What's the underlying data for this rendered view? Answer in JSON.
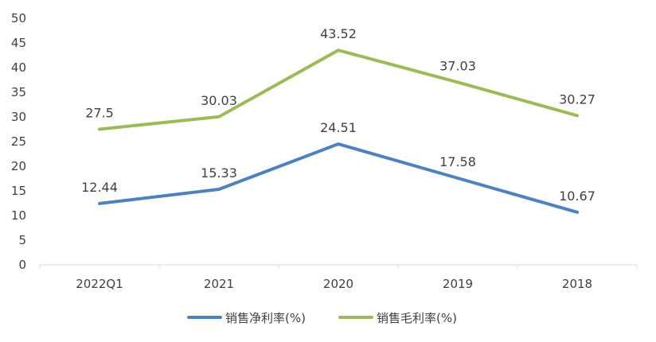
{
  "chart_data": {
    "type": "line",
    "categories": [
      "2022Q1",
      "2021",
      "2020",
      "2019",
      "2018"
    ],
    "series": [
      {
        "name": "销售净利率(%)",
        "values": [
          12.44,
          15.33,
          24.51,
          17.58,
          10.67
        ],
        "labels": [
          "12.44",
          "15.33",
          "24.51",
          "17.58",
          "10.67"
        ],
        "color": "#4f81bd"
      },
      {
        "name": "销售毛利率(%)",
        "values": [
          27.5,
          30.03,
          43.52,
          37.03,
          30.27
        ],
        "labels": [
          "27.5",
          "30.03",
          "43.52",
          "37.03",
          "30.27"
        ],
        "color": "#9bbb59"
      }
    ],
    "ylim": [
      0,
      50
    ],
    "yticks": [
      "0",
      "5",
      "10",
      "15",
      "20",
      "25",
      "30",
      "35",
      "40",
      "45",
      "50"
    ],
    "grid": false,
    "legend": "bottom"
  }
}
